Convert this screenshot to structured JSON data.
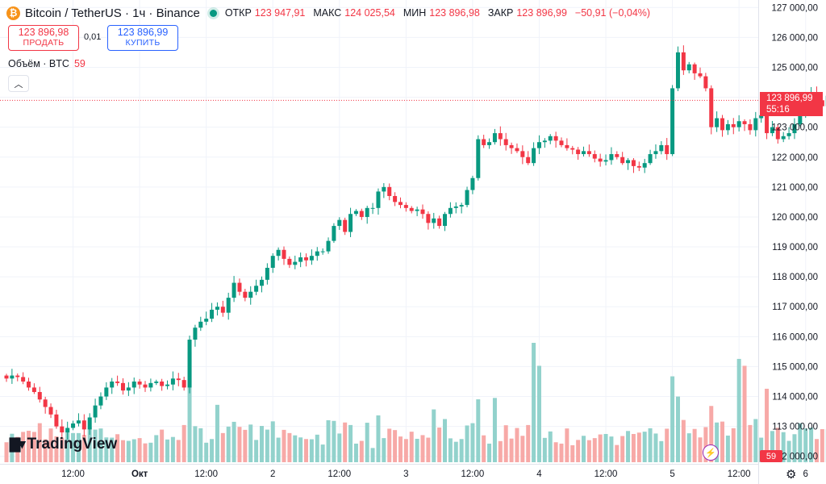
{
  "header": {
    "symbol": "Bitcoin / TetherUS · 1ч · Binance",
    "open_label": "ОТКР",
    "open": "123 947,91",
    "high_label": "МАКС",
    "high": "124 025,54",
    "low_label": "МИН",
    "low": "123 896,98",
    "close_label": "ЗАКР",
    "close": "123 896,99",
    "change": "−50,91 (−0,04%)"
  },
  "trade": {
    "sell_price": "123 896,98",
    "sell_label": "ПРОДАТЬ",
    "spread": "0,01",
    "buy_price": "123 896,99",
    "buy_label": "КУПИТЬ"
  },
  "volume_legend": {
    "label": "Объём · BTC",
    "value": "59"
  },
  "price_tag": {
    "price": "123 896,99",
    "countdown": "55:16"
  },
  "volume_tag": "59",
  "logo": {
    "text": "TradingView"
  },
  "colors": {
    "up": "#089981",
    "down": "#f23645",
    "up_vol": "#92d2cc",
    "down_vol": "#f7a9a7"
  },
  "chart_data": {
    "type": "candlestick",
    "ylim": [
      111750,
      127250
    ],
    "y_ticks": [
      112000,
      113000,
      114000,
      115000,
      116000,
      117000,
      118000,
      119000,
      120000,
      121000,
      122000,
      123000,
      124000,
      125000,
      126000,
      127000
    ],
    "y_tick_labels": [
      "112 000,00",
      "113 000,00",
      "114 000,00",
      "115 000,00",
      "116 000,00",
      "117 000,00",
      "118 000,00",
      "119 000,00",
      "120 000,00",
      "121 000,00",
      "122 000,00",
      "123 000,00",
      "124 000,00",
      "125 000,00",
      "126 000,00",
      "127 000,00"
    ],
    "x_ticks": [
      {
        "index": 12,
        "label": "12:00"
      },
      {
        "index": 24,
        "label": "Окт"
      },
      {
        "index": 36,
        "label": "12:00"
      },
      {
        "index": 48,
        "label": "2"
      },
      {
        "index": 60,
        "label": "12:00"
      },
      {
        "index": 72,
        "label": "3"
      },
      {
        "index": 84,
        "label": "12:00"
      },
      {
        "index": 96,
        "label": "4"
      },
      {
        "index": 108,
        "label": "12:00"
      },
      {
        "index": 120,
        "label": "5"
      },
      {
        "index": 132,
        "label": "12:00"
      },
      {
        "index": 144,
        "label": "6"
      },
      {
        "index": 156,
        "label": "12:00"
      }
    ],
    "last_price": 123896.99,
    "candles": [],
    "volumes": []
  }
}
